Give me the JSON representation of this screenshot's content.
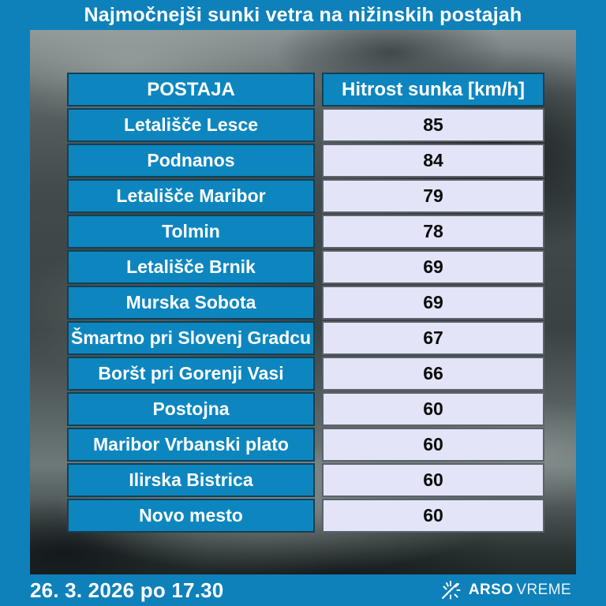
{
  "title": "Najmočnejši sunki vetra na nižinskih postajah",
  "table": {
    "columns": [
      "POSTAJA",
      "Hitrost sunka [km/h]"
    ],
    "rows": [
      {
        "station": "Letališče Lesce",
        "gust": "85"
      },
      {
        "station": "Podnanos",
        "gust": "84"
      },
      {
        "station": "Letališče Maribor",
        "gust": "79"
      },
      {
        "station": "Tolmin",
        "gust": "78"
      },
      {
        "station": "Letališče Brnik",
        "gust": "69"
      },
      {
        "station": "Murska Sobota",
        "gust": "69"
      },
      {
        "station": "Šmartno pri Slovenj Gradcu",
        "gust": "67"
      },
      {
        "station": "Boršt pri Gorenji Vasi",
        "gust": "66"
      },
      {
        "station": "Postojna",
        "gust": "60"
      },
      {
        "station": "Maribor Vrbanski plato",
        "gust": "60"
      },
      {
        "station": "Ilirska Bistrica",
        "gust": "60"
      },
      {
        "station": "Novo mesto",
        "gust": "60"
      }
    ]
  },
  "footer": {
    "timestamp": "26. 3. 2026 po 17.30",
    "brand_bold": "ARSO",
    "brand_light": "VREME"
  },
  "colors": {
    "brand_blue": "#0e81bb",
    "cell_blue": "#0d86bf",
    "value_cell_bg": "#e3e4f7",
    "text_white": "#ffffff",
    "text_black": "#0d0d0d"
  },
  "chart_data": {
    "type": "table",
    "title": "Najmočnejši sunki vetra na nižinskih postajah",
    "columns": [
      "POSTAJA",
      "Hitrost sunka [km/h]"
    ],
    "rows": [
      [
        "Letališče Lesce",
        85
      ],
      [
        "Podnanos",
        84
      ],
      [
        "Letališče Maribor",
        79
      ],
      [
        "Tolmin",
        78
      ],
      [
        "Letališče Brnik",
        69
      ],
      [
        "Murska Sobota",
        69
      ],
      [
        "Šmartno pri Slovenj Gradcu",
        67
      ],
      [
        "Boršt pri Gorenji Vasi",
        66
      ],
      [
        "Postojna",
        60
      ],
      [
        "Maribor Vrbanski plato",
        60
      ],
      [
        "Ilirska Bistrica",
        60
      ],
      [
        "Novo mesto",
        60
      ]
    ],
    "footer_timestamp": "26. 3. 2026 po 17.30",
    "source": "ARSO VREME"
  }
}
